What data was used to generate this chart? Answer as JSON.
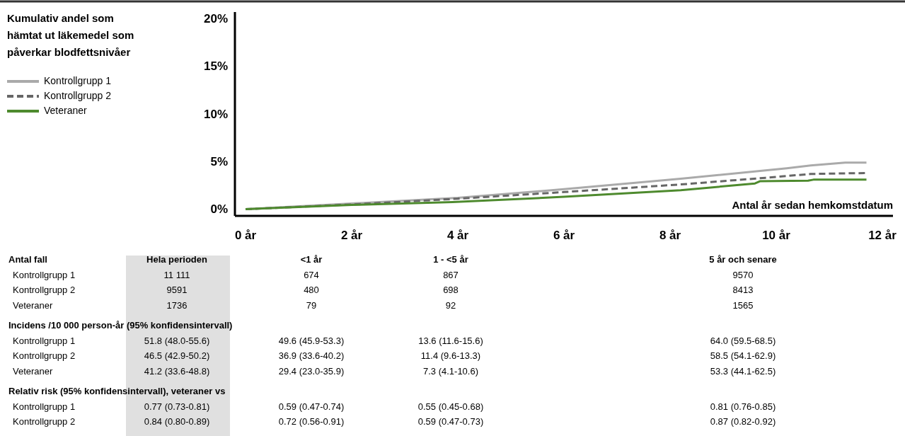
{
  "chart_data": [
    {
      "type": "line",
      "ylabel": "Kumulativ andel som hämtat ut läkemedel som påverkar blodfettsnivåer",
      "xlabel": "Antal år sedan hemkomstdatum",
      "xlim": [
        -0.2,
        12.2
      ],
      "xticks": [
        {
          "value": 0,
          "label": "0 år"
        },
        {
          "value": 2,
          "label": "2 år"
        },
        {
          "value": 4,
          "label": "4 år"
        },
        {
          "value": 6,
          "label": "6 år"
        },
        {
          "value": 8,
          "label": "8 år"
        },
        {
          "value": 10,
          "label": "10 år"
        },
        {
          "value": 12,
          "label": "12 år"
        }
      ],
      "ylim": [
        -0.4,
        21
      ],
      "yticks": [
        {
          "value": 0,
          "label": "0%"
        },
        {
          "value": 5,
          "label": "5%"
        },
        {
          "value": 10,
          "label": "10%"
        },
        {
          "value": 15,
          "label": "15%"
        },
        {
          "value": 20,
          "label": "20%"
        }
      ],
      "grid": false,
      "legend": "top left",
      "marker": "none",
      "series": [
        {
          "name": "Kontrollgrupp 1",
          "color": "#aaaaaa",
          "line_style": "solid",
          "x": [
            0,
            2,
            4,
            6,
            8.2,
            10.2,
            10.65,
            11.3,
            11.7
          ],
          "values": [
            0.3,
            0.9,
            1.5,
            2.4,
            3.5,
            4.6,
            4.9,
            5.2,
            5.2
          ]
        },
        {
          "name": "Kontrollgrupp 2",
          "color": "#666666",
          "line_style": "dashed",
          "x": [
            0,
            2,
            4,
            6,
            8.2,
            9.8,
            10.65,
            11.7
          ],
          "values": [
            0.3,
            0.8,
            1.4,
            2.1,
            2.9,
            3.6,
            4.0,
            4.1
          ]
        },
        {
          "name": "Veteraner",
          "color": "#4e8a2e",
          "line_style": "solid",
          "x": [
            0,
            2,
            3.9,
            6,
            8.2,
            9.6,
            9.7,
            10.6,
            10.7,
            11.7
          ],
          "values": [
            0.3,
            0.75,
            1.05,
            1.6,
            2.3,
            3.0,
            3.25,
            3.3,
            3.4,
            3.4
          ]
        }
      ]
    },
    {
      "type": "other",
      "title": "Antal fall",
      "categories": [
        "Hela perioden",
        "<1 år",
        "1 - <5 år",
        "5 år och senare"
      ],
      "y_categories": [
        "Kontrollgrupp 1",
        "Kontrollgrupp 2",
        "Veteraner"
      ],
      "cell_labels": [
        [
          "11 111",
          "674",
          "867",
          "9570"
        ],
        [
          "9591",
          "480",
          "698",
          "8413"
        ],
        [
          "1736",
          "79",
          "92",
          "1565"
        ]
      ]
    },
    {
      "type": "other",
      "title": "Incidens /10 000 person-år (95% konfidensintervall)",
      "y_categories": [
        "Kontrollgrupp 1",
        "Kontrollgrupp 2",
        "Veteraner"
      ],
      "cell_labels": [
        [
          "51.8 (48.0-55.6)",
          "49.6 (45.9-53.3)",
          "13.6 (11.6-15.6)",
          "64.0 (59.5-68.5)"
        ],
        [
          "46.5 (42.9-50.2)",
          "36.9 (33.6-40.2)",
          "11.4 (9.6-13.3)",
          "58.5 (54.1-62.9)"
        ],
        [
          "41.2 (33.6-48.8)",
          "29.4 (23.0-35.9)",
          "7.3 (4.1-10.6)",
          "53.3 (44.1-62.5)"
        ]
      ]
    },
    {
      "type": "other",
      "title": "Relativ risk (95% konfidensintervall), veteraner vs",
      "y_categories": [
        "Kontrollgrupp 1",
        "Kontrollgrupp 2"
      ],
      "cell_labels": [
        [
          "0.77 (0.73-0.81)",
          "0.59 (0.47-0.74)",
          "0.55 (0.45-0.68)",
          "0.81 (0.76-0.85)"
        ],
        [
          "0.84 (0.80-0.89)",
          "0.72 (0.56-0.91)",
          "0.59 (0.47-0.73)",
          "0.87 (0.82-0.92)"
        ]
      ]
    }
  ]
}
